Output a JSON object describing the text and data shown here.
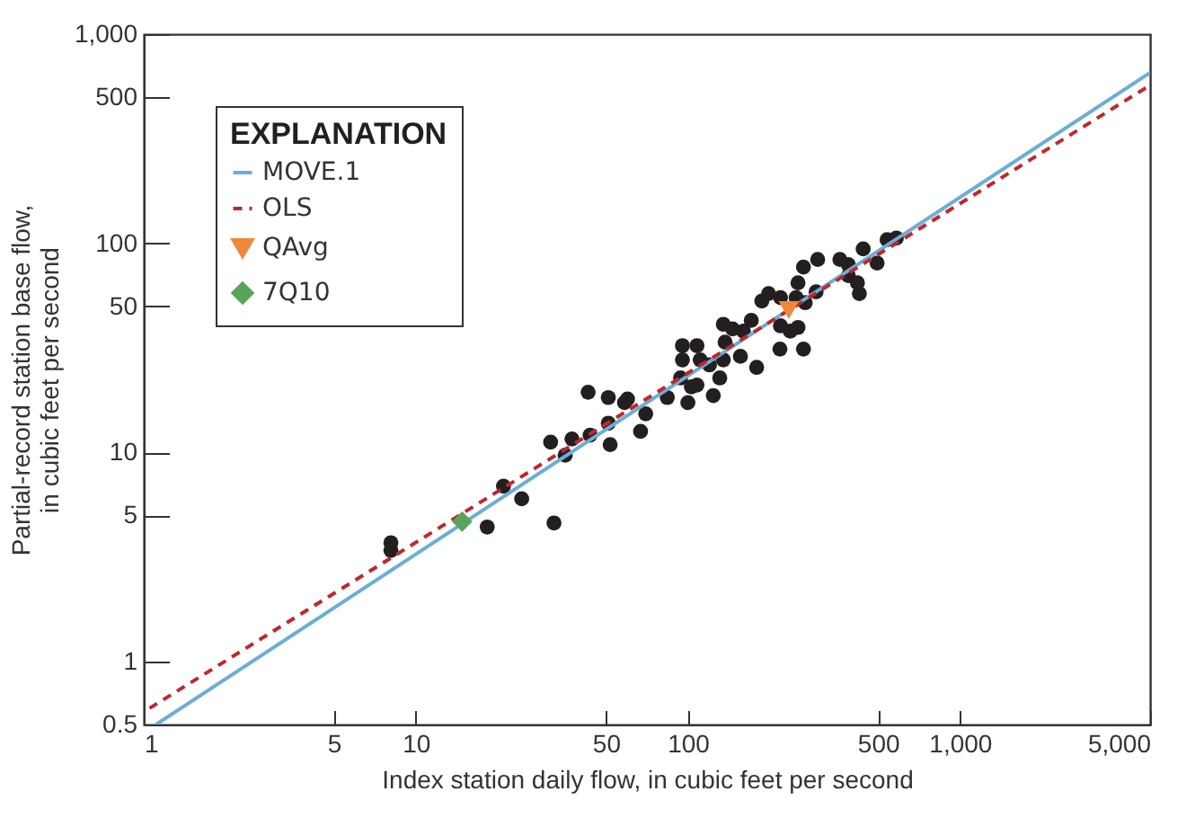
{
  "chart_data": {
    "type": "scatter",
    "xlabel": "Index station daily flow, in cubic feet per second",
    "ylabel": "Partial-record station base flow,\nin cubic feet per second",
    "legend_title": "EXPLANATION",
    "log": "xy",
    "grid": false,
    "legend": "top left",
    "xlim": [
      1,
      5000
    ],
    "xticks": [
      1,
      5,
      10,
      50,
      100,
      500,
      {
        "value": 1000,
        "label": "1,000"
      },
      {
        "value": 5000,
        "label": "5,000"
      }
    ],
    "ylim": [
      0.5,
      1000
    ],
    "yticks": [
      0.5,
      1,
      5,
      10,
      50,
      100,
      500,
      {
        "value": 1000,
        "label": "1,000"
      }
    ],
    "series": [
      {
        "type": "scatter",
        "color": "#231f20",
        "marker": "circle",
        "x": [
          8.1,
          8.1,
          18.3,
          32.2,
          21,
          24.5,
          31.3,
          35.4,
          37.5,
          43.7,
          51.8,
          51,
          43,
          51,
          58.5,
          60,
          67,
          70,
          84,
          94,
          100,
          103,
          108,
          124,
          95.5,
          108,
          95.5,
          111,
          120,
          131,
          135,
          137,
          135,
          156,
          160,
          179,
          171,
          187,
          218,
          266,
          219,
          254,
          219,
          250,
          254,
          270,
          296,
          266,
          300,
          362,
          389,
          441,
          389,
          420,
          427,
          496,
          540,
          584,
          198,
          238,
          146
        ],
        "values": [
          3.7,
          3.4,
          4.4,
          4.6,
          6.9,
          6.0,
          11.2,
          9.7,
          11.6,
          12.1,
          10.9,
          13.8,
          19.4,
          18.3,
          17.3,
          18,
          12.6,
          15.3,
          18.3,
          22.7,
          17.3,
          20.6,
          21,
          18.7,
          32.4,
          32.4,
          27.7,
          27.7,
          26.2,
          22.7,
          27.7,
          33.7,
          41,
          28.8,
          38,
          25.5,
          42.8,
          53,
          31.2,
          31.2,
          40.3,
          39.6,
          55,
          55,
          64.7,
          52,
          58.6,
          77,
          83.7,
          83.7,
          79,
          94,
          70,
          64.7,
          57.5,
          80.5,
          104,
          106,
          57.5,
          38,
          39
        ]
      },
      {
        "type": "line",
        "name": "MOVE.1",
        "color": "#6baed6",
        "line_style": "solid",
        "x": [
          1.11,
          5000
        ],
        "values": [
          0.5,
          654
        ]
      },
      {
        "type": "line",
        "name": "OLS",
        "color": "#c0272d",
        "line_style": "dashed",
        "x": [
          1.05,
          5000
        ],
        "values": [
          0.598,
          570
        ]
      },
      {
        "type": "scatter",
        "name": "QAvg",
        "color": "#f0883a",
        "marker": "triangle",
        "x": [
          235
        ],
        "values": [
          48
        ]
      },
      {
        "type": "scatter",
        "name": "7Q10",
        "color": "#5aa35a",
        "marker": "diamond",
        "x": [
          14.8
        ],
        "values": [
          4.67
        ]
      }
    ]
  }
}
